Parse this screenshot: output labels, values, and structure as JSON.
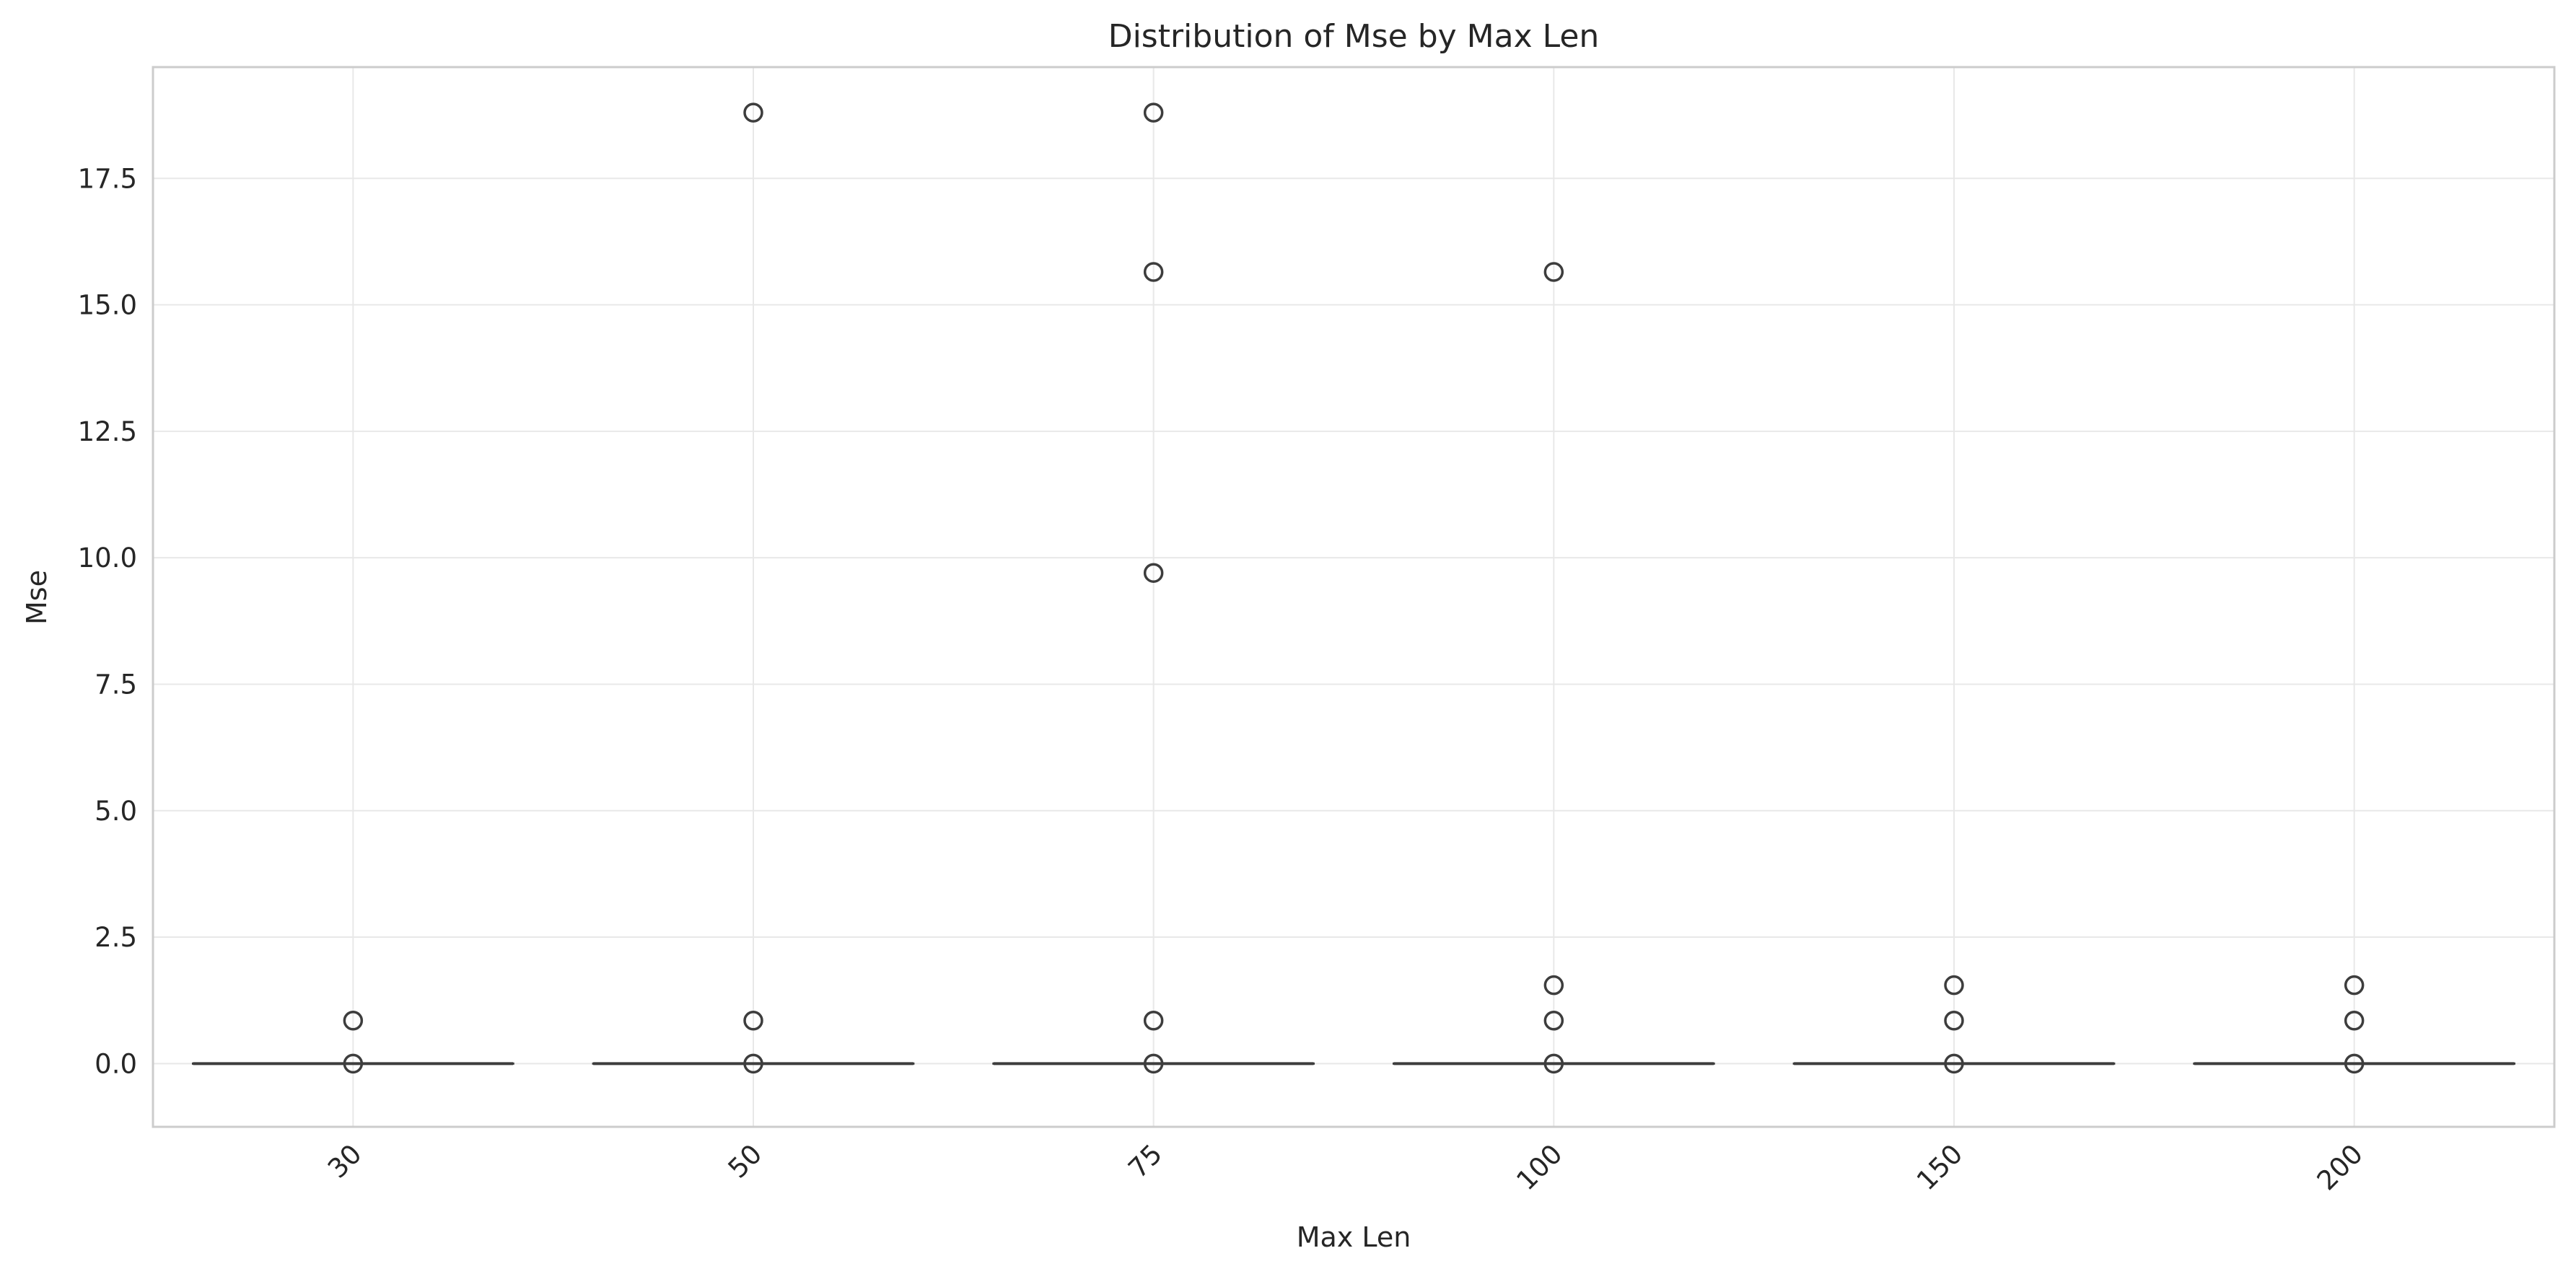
{
  "chart_data": {
    "type": "box",
    "title": "Distribution of Mse by Max Len",
    "xlabel": "Max Len",
    "ylabel": "Mse",
    "categories": [
      "30",
      "50",
      "75",
      "100",
      "150",
      "200"
    ],
    "ylim": [
      -1.25,
      19.7
    ],
    "yticks": [
      0.0,
      2.5,
      5.0,
      7.5,
      10.0,
      12.5,
      15.0,
      17.5
    ],
    "ytick_labels": [
      "0.0",
      "2.5",
      "5.0",
      "7.5",
      "10.0",
      "12.5",
      "15.0",
      "17.5"
    ],
    "x_tick_rotation_deg": 45,
    "grid": true,
    "boxes": [
      {
        "category": "30",
        "median": 0.0,
        "q1": 0.0,
        "q3": 0.0,
        "whisker_low": 0.0,
        "whisker_high": 0.0,
        "fliers": [
          0.85,
          0.0
        ]
      },
      {
        "category": "50",
        "median": 0.0,
        "q1": 0.0,
        "q3": 0.0,
        "whisker_low": 0.0,
        "whisker_high": 0.0,
        "fliers": [
          18.8,
          0.85,
          0.0
        ]
      },
      {
        "category": "75",
        "median": 0.0,
        "q1": 0.0,
        "q3": 0.0,
        "whisker_low": 0.0,
        "whisker_high": 0.0,
        "fliers": [
          18.8,
          15.65,
          9.7,
          0.85,
          0.0
        ]
      },
      {
        "category": "100",
        "median": 0.0,
        "q1": 0.0,
        "q3": 0.0,
        "whisker_low": 0.0,
        "whisker_high": 0.0,
        "fliers": [
          15.65,
          1.55,
          0.85,
          0.0
        ]
      },
      {
        "category": "150",
        "median": 0.0,
        "q1": 0.0,
        "q3": 0.0,
        "whisker_low": 0.0,
        "whisker_high": 0.0,
        "fliers": [
          1.55,
          0.85,
          0.0
        ]
      },
      {
        "category": "200",
        "median": 0.0,
        "q1": 0.0,
        "q3": 0.0,
        "whisker_low": 0.0,
        "whisker_high": 0.0,
        "fliers": [
          1.55,
          0.85,
          0.0
        ]
      }
    ],
    "colors": {
      "box_line": "#3d3d3d",
      "grid": "#e8e8e8",
      "frame": "#cccccc",
      "text": "#262626",
      "background": "#ffffff"
    }
  }
}
